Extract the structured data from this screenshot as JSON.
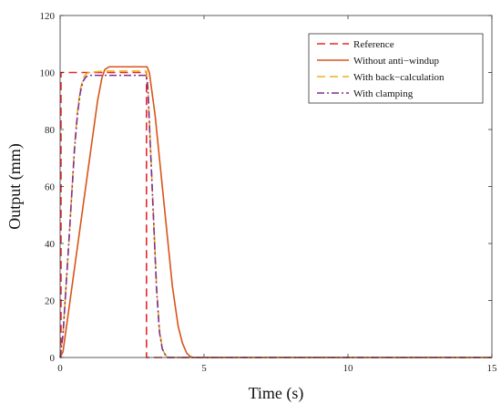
{
  "chart_data": {
    "type": "line",
    "title": "",
    "xlabel": "Time (s)",
    "ylabel": "Output (mm)",
    "xlim": [
      0,
      15
    ],
    "ylim": [
      0,
      120
    ],
    "xticks": [
      0,
      5,
      10,
      15
    ],
    "yticks": [
      0,
      20,
      40,
      60,
      80,
      100,
      120
    ],
    "xtick_labels": [
      "0",
      "5",
      "10",
      "15"
    ],
    "ytick_labels": [
      "0",
      "20",
      "40",
      "60",
      "80",
      "100",
      "120"
    ],
    "grid": false,
    "legend_position": "top-right",
    "series": [
      {
        "name": "Reference",
        "color": "#e8262b",
        "style": "dashed",
        "x": [
          0,
          0.03,
          0.03,
          3.0,
          3.0,
          15
        ],
        "y": [
          0,
          0,
          100,
          100,
          0,
          0
        ]
      },
      {
        "name": "Without anti−windup",
        "color": "#d9541a",
        "style": "solid",
        "x": [
          0,
          0.1,
          1.0,
          1.3,
          1.45,
          1.55,
          1.7,
          2.0,
          2.5,
          3.02,
          3.1,
          3.3,
          3.5,
          3.7,
          3.9,
          4.1,
          4.25,
          4.4,
          4.5,
          4.6,
          15
        ],
        "y": [
          0,
          2,
          68,
          90,
          98,
          101,
          102,
          102,
          102,
          102,
          100,
          85,
          65,
          45,
          25,
          11,
          5,
          1.5,
          0.5,
          0,
          0
        ]
      },
      {
        "name": "With back−calculation",
        "color": "#edb120",
        "style": "dashed",
        "x": [
          0,
          0.1,
          0.3,
          0.5,
          0.6,
          0.7,
          0.8,
          0.9,
          1.0,
          1.5,
          2.0,
          2.5,
          3.0,
          3.05,
          3.2,
          3.35,
          3.45,
          3.55,
          3.65,
          3.75,
          15
        ],
        "y": [
          0,
          8,
          40,
          74,
          86,
          94,
          98,
          99.5,
          100,
          100.5,
          100.5,
          100.5,
          100.5,
          95,
          60,
          25,
          10,
          3,
          1,
          0,
          0
        ]
      },
      {
        "name": "With clamping",
        "color": "#7e2f8e",
        "style": "dashdot",
        "x": [
          0,
          0.1,
          0.3,
          0.5,
          0.6,
          0.7,
          0.8,
          0.9,
          1.0,
          1.5,
          2.0,
          2.5,
          3.0,
          3.05,
          3.2,
          3.35,
          3.45,
          3.55,
          3.65,
          3.75,
          15
        ],
        "y": [
          0,
          8,
          40,
          73,
          85,
          93,
          97,
          98.5,
          99,
          99,
          99,
          99,
          99,
          94,
          59,
          24,
          9,
          3,
          1,
          0,
          0
        ]
      }
    ]
  }
}
